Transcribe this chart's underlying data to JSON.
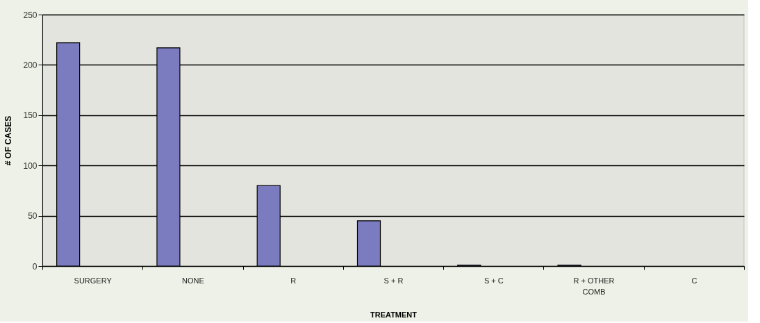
{
  "chart_data": {
    "type": "bar",
    "xlabel": "TREATMENT",
    "ylabel": "# OF CASES",
    "categories": [
      "SURGERY",
      "NONE",
      "R",
      "S + R",
      "S + C",
      "R + OTHER COMB",
      "C"
    ],
    "values": [
      222,
      217,
      80,
      45,
      1,
      1,
      0
    ],
    "color": "#7b7bbf",
    "ylim": [
      0,
      250
    ],
    "yticks": [
      0,
      50,
      100,
      150,
      200,
      250
    ],
    "grid": "y"
  }
}
